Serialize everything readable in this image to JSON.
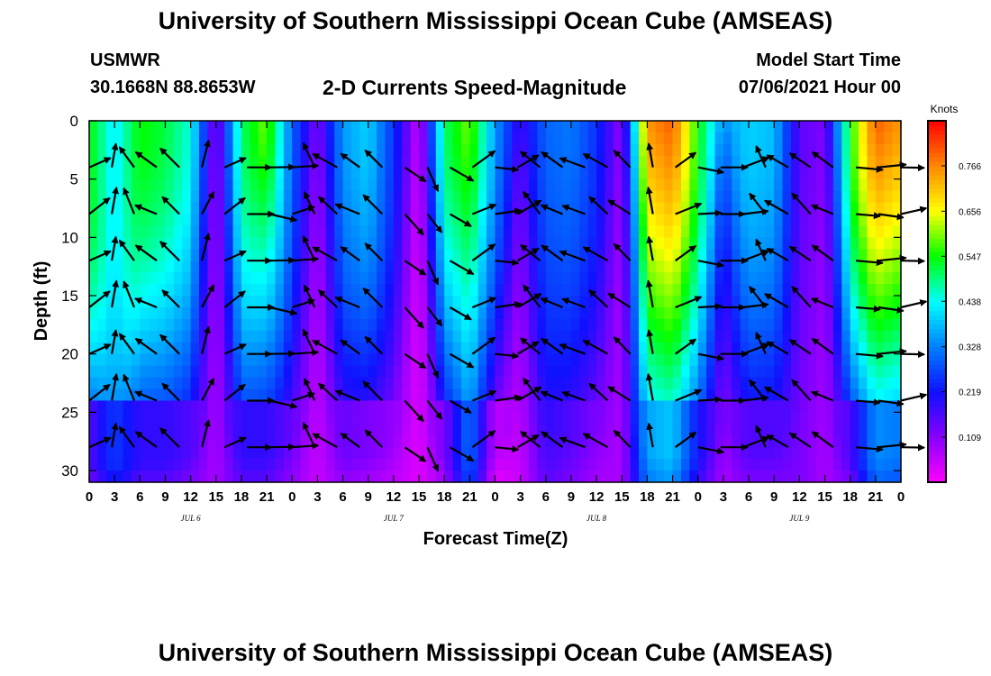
{
  "header": {
    "title": "University of Southern Mississippi Ocean Cube (AMSEAS)",
    "station": "USMWR",
    "coords": "30.1668N  88.8653W",
    "subtitle": "2-D Currents Speed-Magnitude",
    "start_label": "Model Start Time",
    "start_value": "07/06/2021 Hour 00"
  },
  "footer": {
    "title": "University of Southern Mississippi Ocean Cube (AMSEAS)"
  },
  "chart_data": {
    "type": "heatmap",
    "title": "2-D Currents Speed-Magnitude",
    "xlabel": "Forecast Time(Z)",
    "ylabel": "Depth (ft)",
    "x_unit": "hour",
    "xlim": [
      0,
      96
    ],
    "ylim": [
      31,
      0
    ],
    "y_ticks": [
      0,
      5,
      10,
      15,
      20,
      25,
      30
    ],
    "x_tick_labels": [
      "0",
      "3",
      "6",
      "9",
      "12",
      "15",
      "18",
      "21",
      "0",
      "3",
      "6",
      "9",
      "12",
      "15",
      "18",
      "21",
      "0",
      "3",
      "6",
      "9",
      "12",
      "15",
      "18",
      "21",
      "0",
      "3",
      "6",
      "9",
      "12",
      "15",
      "18",
      "21",
      "0"
    ],
    "day_labels": [
      "JUL 6",
      "JUL 7",
      "JUL 8",
      "JUL 9"
    ],
    "colorbar": {
      "label": "Knots",
      "ticks": [
        "0.766",
        "0.656",
        "0.547",
        "0.438",
        "0.328",
        "0.219",
        "0.109"
      ],
      "range": [
        0,
        0.875
      ],
      "colors": [
        "#ff00ff",
        "#8800ff",
        "#1010ff",
        "#0080ff",
        "#00ffff",
        "#00ff00",
        "#ffff00",
        "#ff8800",
        "#ff0000"
      ]
    },
    "speed_profile": {
      "hours": [
        0,
        3,
        6,
        9,
        12,
        15,
        18,
        21,
        24,
        27,
        30,
        33,
        36,
        39,
        42,
        45,
        48,
        51,
        54,
        57,
        60,
        63,
        66,
        69,
        72,
        75,
        78,
        81,
        84,
        87,
        90,
        93,
        96
      ],
      "surface": [
        0.55,
        0.42,
        0.55,
        0.52,
        0.45,
        0.1,
        0.5,
        0.6,
        0.3,
        0.12,
        0.35,
        0.4,
        0.25,
        0.05,
        0.5,
        0.6,
        0.35,
        0.18,
        0.3,
        0.32,
        0.25,
        0.1,
        0.75,
        0.8,
        0.55,
        0.35,
        0.4,
        0.38,
        0.15,
        0.12,
        0.55,
        0.8,
        0.75
      ],
      "bottom": [
        0.12,
        0.22,
        0.15,
        0.15,
        0.12,
        0.08,
        0.15,
        0.15,
        0.1,
        0.05,
        0.1,
        0.08,
        0.06,
        0.03,
        0.08,
        0.28,
        0.02,
        0.05,
        0.15,
        0.12,
        0.08,
        0.08,
        0.32,
        0.35,
        0.18,
        0.08,
        0.12,
        0.12,
        0.12,
        0.08,
        0.12,
        0.3,
        0.28
      ],
      "taper": [
        4,
        6,
        3,
        3,
        3,
        1,
        3,
        2,
        3,
        1,
        3,
        3,
        3,
        1,
        3,
        2,
        3,
        1,
        3,
        3,
        3,
        1,
        2,
        2,
        3,
        1,
        3,
        3,
        3,
        1,
        3,
        2,
        2
      ]
    },
    "vector_depths": [
      4,
      8,
      12,
      16,
      20,
      24,
      28
    ],
    "vector_hours": [
      0,
      2.67,
      5.33,
      8,
      10.67,
      13.33,
      16,
      18.67,
      21.33,
      24,
      26.67,
      29.33,
      32,
      34.67,
      37.33,
      40,
      42.67,
      45.33,
      48,
      50.67,
      53.33,
      56,
      58.67,
      61.33,
      64,
      66.67,
      69.33,
      72,
      74.67,
      77.33,
      80,
      82.67,
      85.33,
      88,
      90.67,
      93.33,
      96
    ],
    "vector_bearings_deg": [
      60,
      10,
      330,
      300,
      315,
      20,
      60,
      90,
      95,
      80,
      335,
      305,
      300,
      315,
      130,
      150,
      120,
      60,
      90,
      60,
      315,
      300,
      290,
      305,
      310,
      350,
      60,
      95,
      90,
      75,
      330,
      300,
      310,
      300,
      95,
      90,
      85
    ]
  }
}
